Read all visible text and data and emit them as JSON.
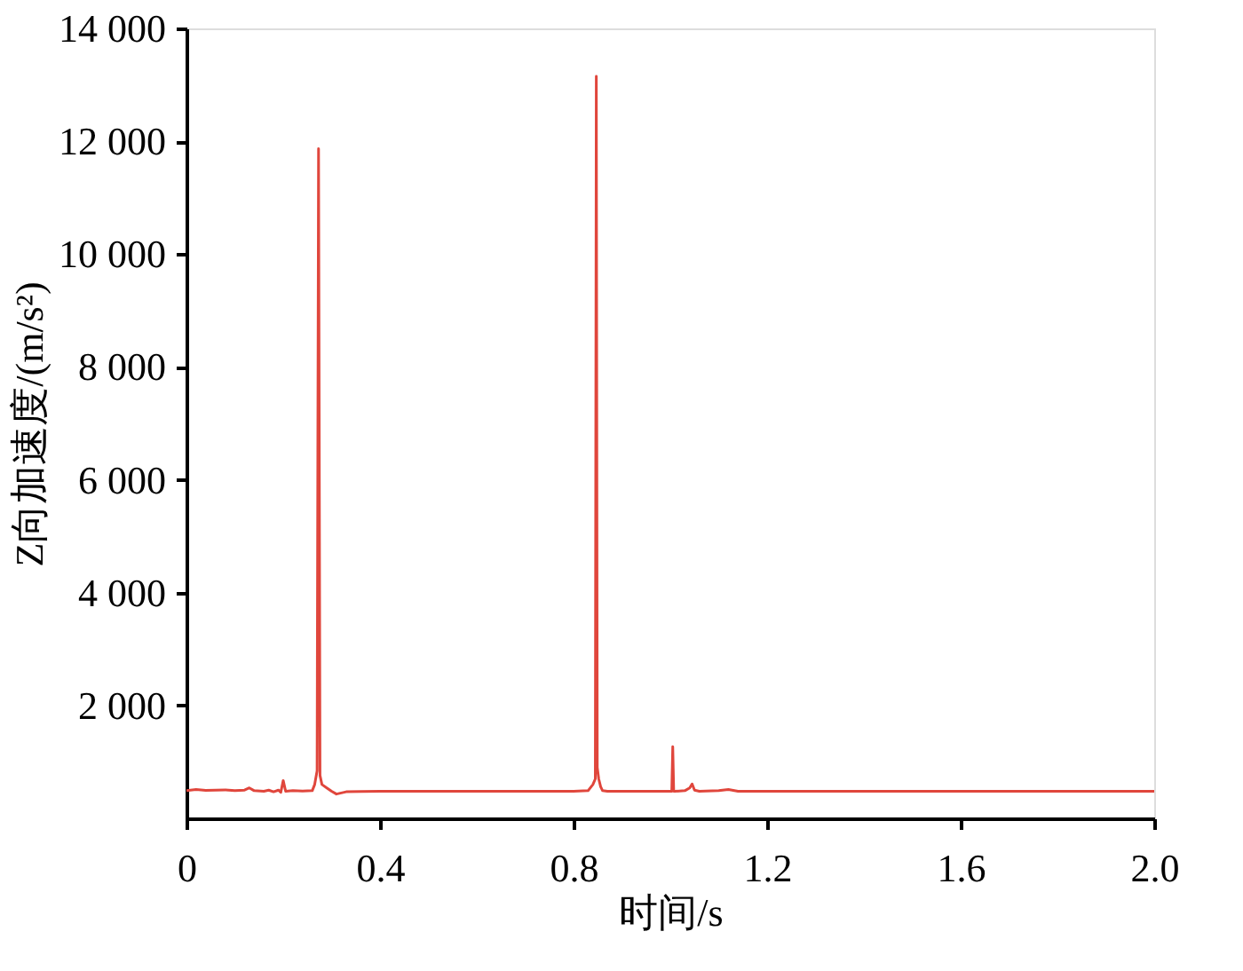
{
  "chart_data": {
    "type": "line",
    "xlabel": "时间/s",
    "ylabel": "Z向加速度/(m/s²)",
    "xlim": [
      0,
      2.0
    ],
    "ylim": [
      0,
      14000
    ],
    "xticks": [
      0,
      0.4,
      0.8,
      1.2,
      1.6,
      {
        "value": 2.0,
        "label": "2.0"
      }
    ],
    "yticks": [
      {
        "value": 2000,
        "label": "2 000"
      },
      {
        "value": 4000,
        "label": "4 000"
      },
      {
        "value": 6000,
        "label": "6 000"
      },
      {
        "value": 8000,
        "label": "8 000"
      },
      {
        "value": 10000,
        "label": "10 000"
      },
      {
        "value": 12000,
        "label": "12 000"
      },
      {
        "value": 14000,
        "label": "14 000"
      }
    ],
    "grid": false,
    "legend": false,
    "marker": "none",
    "line_style": "solid",
    "series": [
      {
        "color": "#e0463c",
        "x": [
          0.0,
          0.02,
          0.04,
          0.06,
          0.08,
          0.1,
          0.12,
          0.13,
          0.14,
          0.16,
          0.17,
          0.18,
          0.19,
          0.195,
          0.2,
          0.205,
          0.22,
          0.24,
          0.26,
          0.265,
          0.27,
          0.273,
          0.276,
          0.28,
          0.29,
          0.3,
          0.31,
          0.32,
          0.33,
          0.36,
          0.4,
          0.5,
          0.6,
          0.7,
          0.8,
          0.83,
          0.84,
          0.845,
          0.847,
          0.849,
          0.852,
          0.856,
          0.86,
          0.87,
          0.9,
          0.95,
          1.0,
          1.003,
          1.005,
          1.007,
          1.01,
          1.03,
          1.04,
          1.045,
          1.05,
          1.06,
          1.1,
          1.12,
          1.14,
          1.2,
          1.4,
          1.6,
          1.8,
          2.0
        ],
        "values": [
          490,
          510,
          495,
          500,
          505,
          490,
          500,
          540,
          490,
          480,
          500,
          470,
          500,
          460,
          670,
          480,
          490,
          485,
          490,
          600,
          840,
          11870,
          760,
          600,
          540,
          480,
          430,
          450,
          470,
          475,
          480,
          480,
          480,
          480,
          480,
          490,
          600,
          700,
          13150,
          900,
          700,
          560,
          490,
          480,
          480,
          480,
          480,
          480,
          1270,
          480,
          480,
          490,
          540,
          610,
          500,
          480,
          490,
          510,
          480,
          480,
          480,
          480,
          480,
          480
        ]
      }
    ]
  }
}
